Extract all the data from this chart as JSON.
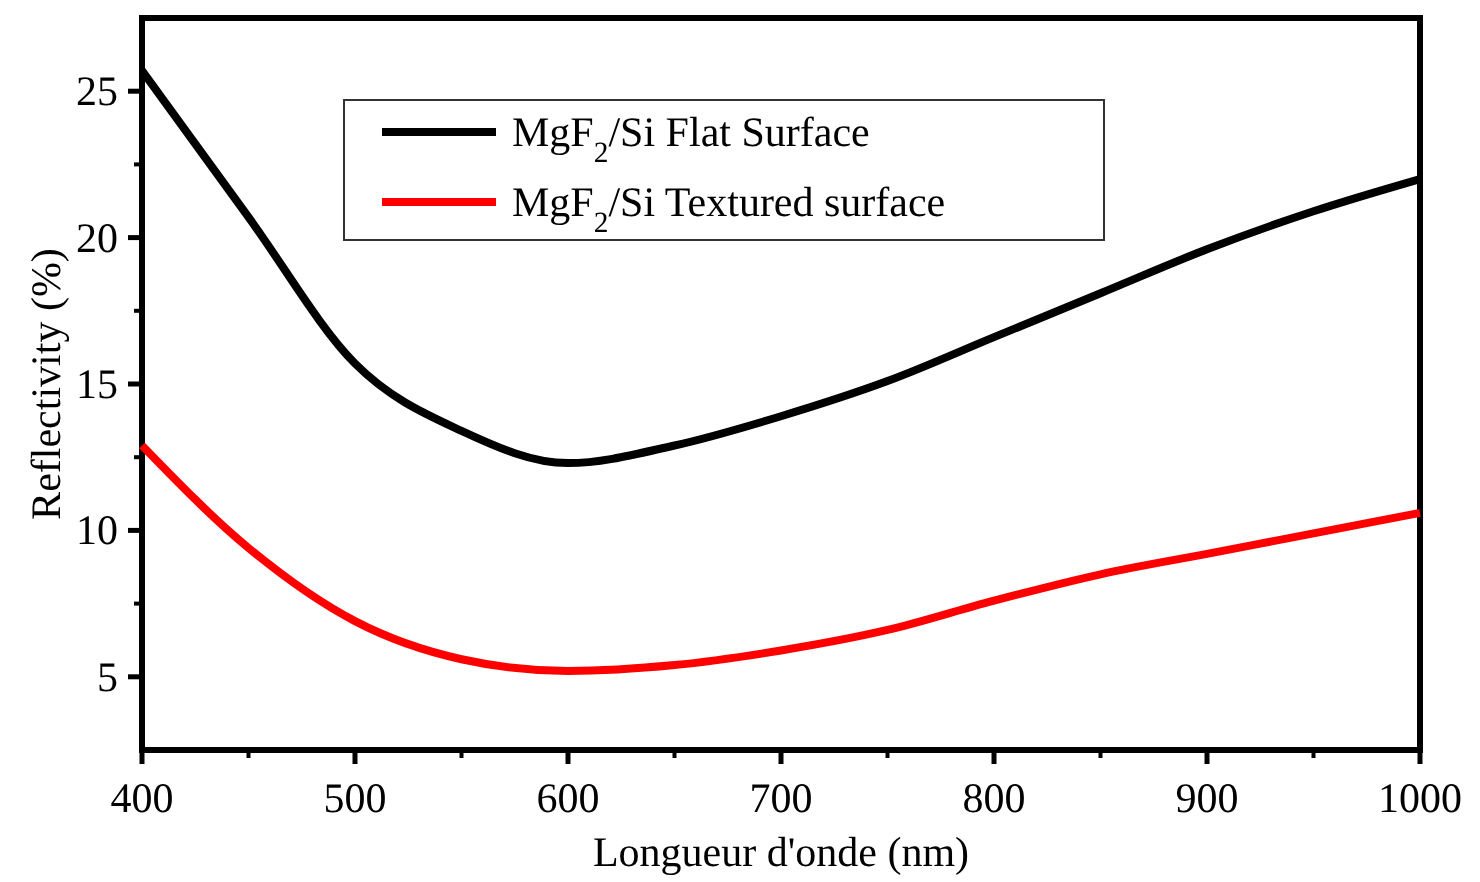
{
  "chart_data": {
    "type": "line",
    "xlabel": "Longueur d'onde (nm)",
    "ylabel": "Reflectivity (%)",
    "x": [
      400,
      450,
      500,
      550,
      600,
      650,
      700,
      750,
      800,
      850,
      900,
      950,
      1000
    ],
    "series": [
      {
        "name": "MgF$_{2}$/Si Flat Surface",
        "color": "#000000",
        "values": [
          25.7,
          20.7,
          15.7,
          13.4,
          12.3,
          12.9,
          13.9,
          15.1,
          16.6,
          18.1,
          19.6,
          20.9,
          22.0
        ]
      },
      {
        "name": "MgF$_{2}$/Si Textured surface",
        "color": "#ff0000",
        "values": [
          12.9,
          9.4,
          6.9,
          5.6,
          5.2,
          5.4,
          5.9,
          6.6,
          7.6,
          8.5,
          9.2,
          9.9,
          10.6
        ]
      }
    ],
    "xlim": [
      400,
      1000
    ],
    "xticks": [
      400,
      500,
      600,
      700,
      800,
      900,
      1000
    ],
    "ylim": [
      2.5,
      27.5
    ],
    "yticks": [
      5,
      10,
      15,
      20,
      25
    ],
    "grid": false,
    "legend": "top left",
    "marker": "none",
    "line_style": "solid"
  }
}
